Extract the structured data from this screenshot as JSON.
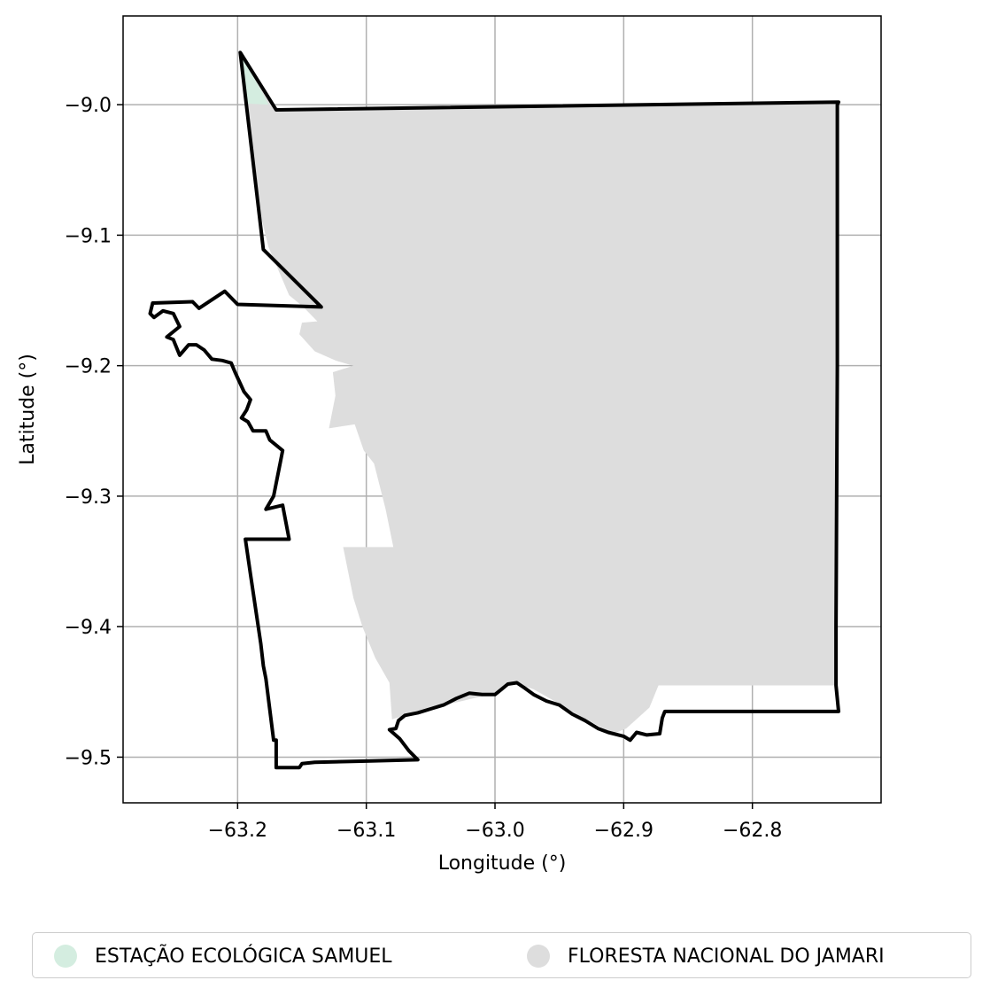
{
  "map": {
    "xlabel": "Longitude (°)",
    "ylabel": "Latitude (°)",
    "xlim": [
      -63.289,
      -62.7
    ],
    "ylim": [
      -9.535,
      -8.932
    ],
    "xticks": [
      {
        "value": -63.2,
        "label": "−63.2"
      },
      {
        "value": -63.1,
        "label": "−63.1"
      },
      {
        "value": -63.0,
        "label": "−63.0"
      },
      {
        "value": -62.9,
        "label": "−62.9"
      },
      {
        "value": -62.8,
        "label": "−62.8"
      }
    ],
    "yticks": [
      {
        "value": -9.0,
        "label": "−9.0"
      },
      {
        "value": -9.1,
        "label": "−9.1"
      },
      {
        "value": -9.2,
        "label": "−9.2"
      },
      {
        "value": -9.3,
        "label": "−9.3"
      },
      {
        "value": -9.4,
        "label": "−9.4"
      },
      {
        "value": -9.5,
        "label": "−9.5"
      }
    ],
    "grid": true,
    "colors": {
      "floresta": "#dddddd",
      "estacao": "#d4ede0",
      "outline": "#000000",
      "grid": "#b0b0b0"
    },
    "layers": {
      "estacao": [
        [
          -63.198,
          -8.961
        ],
        [
          -63.18,
          -8.992
        ],
        [
          -63.176,
          -9.0
        ],
        [
          -63.194,
          -8.999
        ]
      ],
      "floresta": [
        [
          -63.198,
          -8.962
        ],
        [
          -63.17,
          -9.003
        ],
        [
          -62.735,
          -8.999
        ],
        [
          -62.735,
          -9.445
        ],
        [
          -62.873,
          -9.445
        ],
        [
          -62.88,
          -9.462
        ],
        [
          -62.898,
          -9.478
        ],
        [
          -62.908,
          -9.482
        ],
        [
          -62.935,
          -9.468
        ],
        [
          -62.952,
          -9.458
        ],
        [
          -62.97,
          -9.448
        ],
        [
          -62.985,
          -9.443
        ],
        [
          -63.0,
          -9.451
        ],
        [
          -63.03,
          -9.458
        ],
        [
          -63.06,
          -9.465
        ],
        [
          -63.08,
          -9.471
        ],
        [
          -63.082,
          -9.443
        ],
        [
          -63.093,
          -9.424
        ],
        [
          -63.103,
          -9.4
        ],
        [
          -63.11,
          -9.378
        ],
        [
          -63.118,
          -9.339
        ],
        [
          -63.079,
          -9.339
        ],
        [
          -63.085,
          -9.31
        ],
        [
          -63.094,
          -9.275
        ],
        [
          -63.102,
          -9.265
        ],
        [
          -63.109,
          -9.245
        ],
        [
          -63.129,
          -9.248
        ],
        [
          -63.124,
          -9.223
        ],
        [
          -63.126,
          -9.205
        ],
        [
          -63.11,
          -9.2
        ],
        [
          -63.124,
          -9.196
        ],
        [
          -63.14,
          -9.189
        ],
        [
          -63.152,
          -9.176
        ],
        [
          -63.15,
          -9.167
        ],
        [
          -63.138,
          -9.166
        ],
        [
          -63.149,
          -9.155
        ],
        [
          -63.16,
          -9.146
        ],
        [
          -63.176,
          -9.109
        ],
        [
          -63.182,
          -9.085
        ],
        [
          -63.198,
          -8.962
        ]
      ],
      "outline": [
        [
          -63.198,
          -8.96
        ],
        [
          -63.17,
          -9.004
        ],
        [
          -62.733,
          -8.998
        ],
        [
          -62.734,
          -9.0
        ],
        [
          -62.734,
          -9.2
        ],
        [
          -62.735,
          -9.4
        ],
        [
          -62.735,
          -9.445
        ],
        [
          -62.733,
          -9.465
        ],
        [
          -62.868,
          -9.465
        ],
        [
          -62.87,
          -9.47
        ],
        [
          -62.872,
          -9.482
        ],
        [
          -62.882,
          -9.483
        ],
        [
          -62.89,
          -9.481
        ],
        [
          -62.895,
          -9.487
        ],
        [
          -62.9,
          -9.484
        ],
        [
          -62.912,
          -9.481
        ],
        [
          -62.92,
          -9.478
        ],
        [
          -62.93,
          -9.472
        ],
        [
          -62.94,
          -9.467
        ],
        [
          -62.95,
          -9.46
        ],
        [
          -62.96,
          -9.457
        ],
        [
          -62.97,
          -9.452
        ],
        [
          -62.977,
          -9.447
        ],
        [
          -62.983,
          -9.443
        ],
        [
          -62.99,
          -9.444
        ],
        [
          -62.995,
          -9.448
        ],
        [
          -63.0,
          -9.452
        ],
        [
          -63.01,
          -9.452
        ],
        [
          -63.02,
          -9.451
        ],
        [
          -63.03,
          -9.455
        ],
        [
          -63.04,
          -9.46
        ],
        [
          -63.05,
          -9.463
        ],
        [
          -63.06,
          -9.466
        ],
        [
          -63.07,
          -9.468
        ],
        [
          -63.075,
          -9.472
        ],
        [
          -63.077,
          -9.478
        ],
        [
          -63.082,
          -9.479
        ],
        [
          -63.074,
          -9.486
        ],
        [
          -63.067,
          -9.495
        ],
        [
          -63.06,
          -9.502
        ],
        [
          -63.1,
          -9.503
        ],
        [
          -63.14,
          -9.504
        ],
        [
          -63.15,
          -9.505
        ],
        [
          -63.152,
          -9.508
        ],
        [
          -63.17,
          -9.508
        ],
        [
          -63.17,
          -9.487
        ],
        [
          -63.172,
          -9.487
        ],
        [
          -63.178,
          -9.44
        ],
        [
          -63.18,
          -9.43
        ],
        [
          -63.182,
          -9.413
        ],
        [
          -63.19,
          -9.36
        ],
        [
          -63.194,
          -9.333
        ],
        [
          -63.16,
          -9.333
        ],
        [
          -63.165,
          -9.307
        ],
        [
          -63.178,
          -9.31
        ],
        [
          -63.172,
          -9.3
        ],
        [
          -63.17,
          -9.29
        ],
        [
          -63.167,
          -9.275
        ],
        [
          -63.165,
          -9.265
        ],
        [
          -63.175,
          -9.257
        ],
        [
          -63.178,
          -9.25
        ],
        [
          -63.188,
          -9.25
        ],
        [
          -63.192,
          -9.243
        ],
        [
          -63.197,
          -9.24
        ],
        [
          -63.193,
          -9.234
        ],
        [
          -63.19,
          -9.226
        ],
        [
          -63.195,
          -9.22
        ],
        [
          -63.202,
          -9.205
        ],
        [
          -63.205,
          -9.198
        ],
        [
          -63.212,
          -9.196
        ],
        [
          -63.22,
          -9.195
        ],
        [
          -63.226,
          -9.188
        ],
        [
          -63.232,
          -9.184
        ],
        [
          -63.238,
          -9.184
        ],
        [
          -63.245,
          -9.192
        ],
        [
          -63.25,
          -9.18
        ],
        [
          -63.255,
          -9.178
        ],
        [
          -63.245,
          -9.17
        ],
        [
          -63.25,
          -9.16
        ],
        [
          -63.258,
          -9.158
        ],
        [
          -63.265,
          -9.163
        ],
        [
          -63.268,
          -9.16
        ],
        [
          -63.266,
          -9.152
        ],
        [
          -63.235,
          -9.151
        ],
        [
          -63.23,
          -9.156
        ],
        [
          -63.21,
          -9.143
        ],
        [
          -63.2,
          -9.153
        ],
        [
          -63.135,
          -9.155
        ],
        [
          -63.18,
          -9.111
        ],
        [
          -63.198,
          -8.96
        ]
      ]
    }
  },
  "legend": {
    "items": [
      {
        "label": "ESTAÇÃO ECOLÓGICA SAMUEL",
        "color": "#d4ede0"
      },
      {
        "label": "FLORESTA NACIONAL DO JAMARI",
        "color": "#dddddd"
      }
    ]
  }
}
